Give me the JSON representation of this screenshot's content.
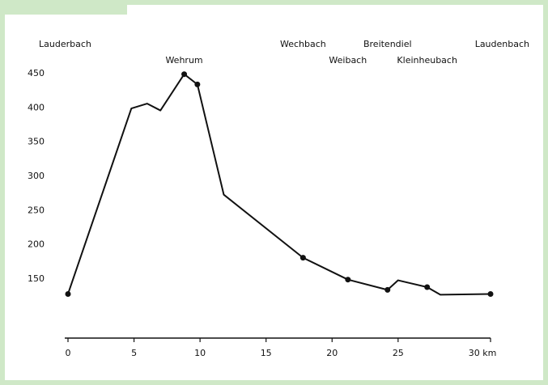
{
  "chart_data": {
    "type": "line",
    "title": "",
    "xlabel": "",
    "ylabel": "",
    "x_unit_label": "30 km",
    "xlim": [
      0,
      32
    ],
    "ylim": [
      100,
      460
    ],
    "x_ticks": [
      0,
      5,
      10,
      15,
      20,
      25
    ],
    "x_tick_labels": [
      "0",
      "5",
      "10",
      "15",
      "20",
      "25"
    ],
    "y_ticks": [
      150,
      200,
      250,
      300,
      350,
      400,
      450
    ],
    "y_tick_labels": [
      "150",
      "200",
      "250",
      "300",
      "350",
      "400",
      "450"
    ],
    "grid": false,
    "legend": "none",
    "series": [
      {
        "values": [
          {
            "x": 0,
            "y": 127
          },
          {
            "x": 4.8,
            "y": 398
          },
          {
            "x": 6,
            "y": 405
          },
          {
            "x": 7,
            "y": 395
          },
          {
            "x": 8.8,
            "y": 448
          },
          {
            "x": 9.8,
            "y": 433
          },
          {
            "x": 11.8,
            "y": 272
          },
          {
            "x": 17.8,
            "y": 180
          },
          {
            "x": 21.2,
            "y": 148
          },
          {
            "x": 24.2,
            "y": 133
          },
          {
            "x": 25,
            "y": 147
          },
          {
            "x": 27.2,
            "y": 137
          },
          {
            "x": 28.2,
            "y": 126
          },
          {
            "x": 32,
            "y": 127
          }
        ],
        "markers": [
          0,
          4,
          5,
          7,
          8,
          9,
          11,
          13
        ]
      }
    ],
    "annotations": [
      {
        "text": "Lauderbach",
        "x": 0,
        "row": 1
      },
      {
        "text": "Wehrum",
        "x": 8.8,
        "row": 2
      },
      {
        "text": "Wechbach",
        "x": 17.8,
        "row": 1
      },
      {
        "text": "Weibach",
        "x": 21.2,
        "row": 2
      },
      {
        "text": "Breitendiel",
        "x": 24.2,
        "row": 1
      },
      {
        "text": "Kleinheubach",
        "x": 27.2,
        "row": 2
      },
      {
        "text": "Laudenbach",
        "x": 32,
        "row": 1
      }
    ]
  }
}
